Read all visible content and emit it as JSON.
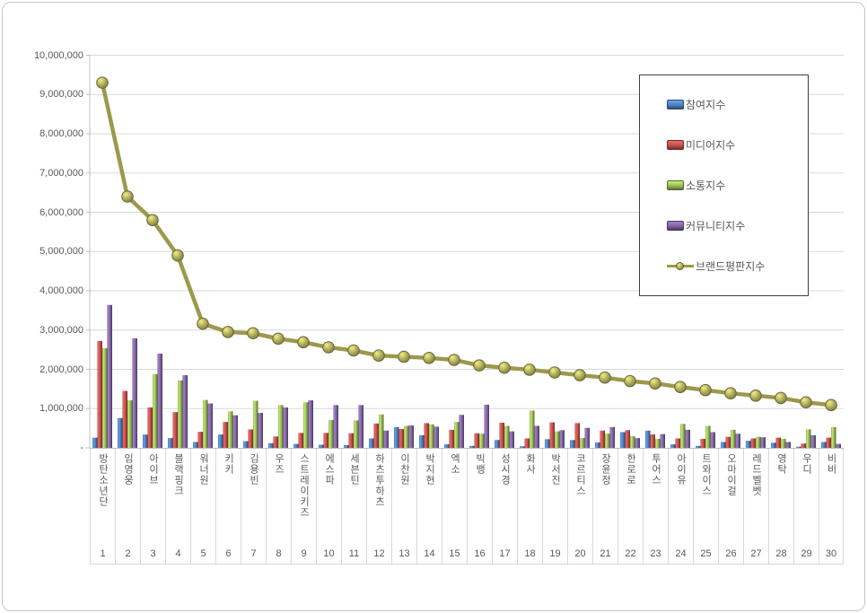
{
  "chart_data": {
    "type": "combo-bar-line",
    "title": "",
    "categories": [
      "방탄소년단",
      "임영웅",
      "아이브",
      "블랙핑크",
      "워너원",
      "키키",
      "김용빈",
      "우즈",
      "스트레이키즈",
      "에스파",
      "세븐틴",
      "하츠투하츠",
      "이찬원",
      "박지현",
      "엑소",
      "빅뱅",
      "성시경",
      "화사",
      "박서진",
      "코르티스",
      "장윤정",
      "한로로",
      "투어스",
      "아이유",
      "트와이스",
      "오마이걸",
      "레드벨벳",
      "영탁",
      "우디",
      "비비"
    ],
    "rank_labels": [
      "1",
      "2",
      "3",
      "4",
      "5",
      "6",
      "7",
      "8",
      "9",
      "10",
      "11",
      "12",
      "13",
      "14",
      "15",
      "16",
      "17",
      "18",
      "19",
      "20",
      "21",
      "22",
      "23",
      "24",
      "25",
      "26",
      "27",
      "28",
      "29",
      "30"
    ],
    "ylim": [
      0,
      10000000
    ],
    "ytick_interval": 1000000,
    "ytick_labels": [
      "-",
      "1,000,000",
      "2,000,000",
      "3,000,000",
      "4,000,000",
      "5,000,000",
      "6,000,000",
      "7,000,000",
      "8,000,000",
      "9,000,000",
      "10,000,000"
    ],
    "grid": true,
    "legend_position": "right-top-box",
    "series": [
      {
        "name": "참여지수",
        "type": "bar",
        "color": "#4F81BD",
        "values": [
          260000,
          760000,
          340000,
          250000,
          150000,
          340000,
          170000,
          120000,
          100000,
          80000,
          70000,
          240000,
          530000,
          320000,
          90000,
          50000,
          200000,
          40000,
          220000,
          200000,
          140000,
          400000,
          440000,
          90000,
          50000,
          150000,
          180000,
          130000,
          30000,
          150000
        ]
      },
      {
        "name": "미디어지수",
        "type": "bar",
        "color": "#C0504D",
        "values": [
          2720000,
          1450000,
          1030000,
          910000,
          410000,
          660000,
          470000,
          290000,
          380000,
          380000,
          370000,
          620000,
          480000,
          630000,
          460000,
          370000,
          640000,
          240000,
          650000,
          630000,
          440000,
          450000,
          340000,
          240000,
          230000,
          280000,
          240000,
          260000,
          110000,
          260000
        ]
      },
      {
        "name": "소통지수",
        "type": "bar",
        "color": "#9BBB59",
        "values": [
          2540000,
          1210000,
          1880000,
          1720000,
          1220000,
          930000,
          1200000,
          1090000,
          1160000,
          710000,
          700000,
          850000,
          560000,
          600000,
          660000,
          360000,
          560000,
          950000,
          420000,
          250000,
          360000,
          300000,
          230000,
          610000,
          560000,
          460000,
          280000,
          230000,
          470000,
          530000
        ]
      },
      {
        "name": "커뮤니티지수",
        "type": "bar",
        "color": "#8064A2",
        "values": [
          3640000,
          2790000,
          2400000,
          1850000,
          1130000,
          830000,
          890000,
          1030000,
          1210000,
          1090000,
          1090000,
          440000,
          570000,
          540000,
          840000,
          1100000,
          420000,
          560000,
          450000,
          510000,
          530000,
          250000,
          350000,
          460000,
          400000,
          360000,
          270000,
          150000,
          320000,
          100000
        ]
      },
      {
        "name": "브랜드평판지수",
        "type": "line",
        "color": "#9C994B",
        "marker_fill": "#A8A459",
        "values": [
          9300000,
          6400000,
          5800000,
          4900000,
          3160000,
          2950000,
          2920000,
          2780000,
          2690000,
          2560000,
          2480000,
          2350000,
          2320000,
          2290000,
          2240000,
          2100000,
          2040000,
          1990000,
          1920000,
          1850000,
          1790000,
          1700000,
          1640000,
          1550000,
          1470000,
          1390000,
          1330000,
          1270000,
          1160000,
          1090000
        ]
      }
    ],
    "colors": {
      "grid": "#d9d9d9",
      "axis": "#bfbfbf",
      "label_text": "#595959",
      "legend_border": "#3f3f3f"
    }
  }
}
